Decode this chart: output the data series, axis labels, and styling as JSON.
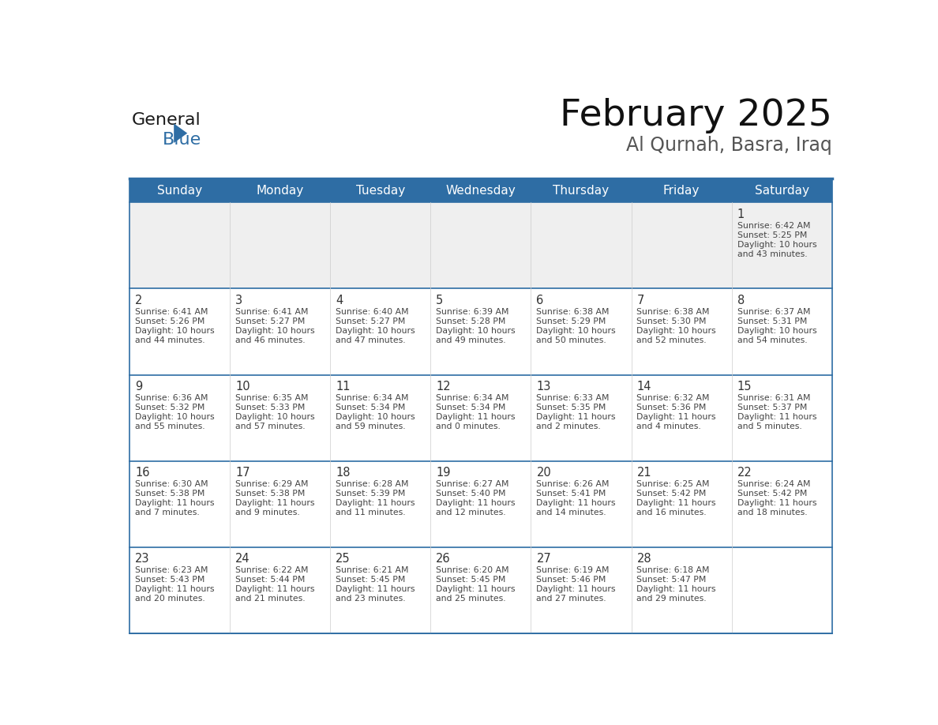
{
  "title": "February 2025",
  "subtitle": "Al Qurnah, Basra, Iraq",
  "header_bg": "#2E6DA4",
  "header_text_color": "#FFFFFF",
  "cell_bg_light": "#EFEFEF",
  "cell_bg_white": "#FFFFFF",
  "border_color": "#2E6DA4",
  "grid_line_color": "#AAAAAA",
  "day_headers": [
    "Sunday",
    "Monday",
    "Tuesday",
    "Wednesday",
    "Thursday",
    "Friday",
    "Saturday"
  ],
  "days": [
    {
      "day": 1,
      "col": 6,
      "row": 0,
      "sunrise": "6:42 AM",
      "sunset": "5:25 PM",
      "daylight_hours": 10,
      "daylight_minutes": 43
    },
    {
      "day": 2,
      "col": 0,
      "row": 1,
      "sunrise": "6:41 AM",
      "sunset": "5:26 PM",
      "daylight_hours": 10,
      "daylight_minutes": 44
    },
    {
      "day": 3,
      "col": 1,
      "row": 1,
      "sunrise": "6:41 AM",
      "sunset": "5:27 PM",
      "daylight_hours": 10,
      "daylight_minutes": 46
    },
    {
      "day": 4,
      "col": 2,
      "row": 1,
      "sunrise": "6:40 AM",
      "sunset": "5:27 PM",
      "daylight_hours": 10,
      "daylight_minutes": 47
    },
    {
      "day": 5,
      "col": 3,
      "row": 1,
      "sunrise": "6:39 AM",
      "sunset": "5:28 PM",
      "daylight_hours": 10,
      "daylight_minutes": 49
    },
    {
      "day": 6,
      "col": 4,
      "row": 1,
      "sunrise": "6:38 AM",
      "sunset": "5:29 PM",
      "daylight_hours": 10,
      "daylight_minutes": 50
    },
    {
      "day": 7,
      "col": 5,
      "row": 1,
      "sunrise": "6:38 AM",
      "sunset": "5:30 PM",
      "daylight_hours": 10,
      "daylight_minutes": 52
    },
    {
      "day": 8,
      "col": 6,
      "row": 1,
      "sunrise": "6:37 AM",
      "sunset": "5:31 PM",
      "daylight_hours": 10,
      "daylight_minutes": 54
    },
    {
      "day": 9,
      "col": 0,
      "row": 2,
      "sunrise": "6:36 AM",
      "sunset": "5:32 PM",
      "daylight_hours": 10,
      "daylight_minutes": 55
    },
    {
      "day": 10,
      "col": 1,
      "row": 2,
      "sunrise": "6:35 AM",
      "sunset": "5:33 PM",
      "daylight_hours": 10,
      "daylight_minutes": 57
    },
    {
      "day": 11,
      "col": 2,
      "row": 2,
      "sunrise": "6:34 AM",
      "sunset": "5:34 PM",
      "daylight_hours": 10,
      "daylight_minutes": 59
    },
    {
      "day": 12,
      "col": 3,
      "row": 2,
      "sunrise": "6:34 AM",
      "sunset": "5:34 PM",
      "daylight_hours": 11,
      "daylight_minutes": 0
    },
    {
      "day": 13,
      "col": 4,
      "row": 2,
      "sunrise": "6:33 AM",
      "sunset": "5:35 PM",
      "daylight_hours": 11,
      "daylight_minutes": 2
    },
    {
      "day": 14,
      "col": 5,
      "row": 2,
      "sunrise": "6:32 AM",
      "sunset": "5:36 PM",
      "daylight_hours": 11,
      "daylight_minutes": 4
    },
    {
      "day": 15,
      "col": 6,
      "row": 2,
      "sunrise": "6:31 AM",
      "sunset": "5:37 PM",
      "daylight_hours": 11,
      "daylight_minutes": 5
    },
    {
      "day": 16,
      "col": 0,
      "row": 3,
      "sunrise": "6:30 AM",
      "sunset": "5:38 PM",
      "daylight_hours": 11,
      "daylight_minutes": 7
    },
    {
      "day": 17,
      "col": 1,
      "row": 3,
      "sunrise": "6:29 AM",
      "sunset": "5:38 PM",
      "daylight_hours": 11,
      "daylight_minutes": 9
    },
    {
      "day": 18,
      "col": 2,
      "row": 3,
      "sunrise": "6:28 AM",
      "sunset": "5:39 PM",
      "daylight_hours": 11,
      "daylight_minutes": 11
    },
    {
      "day": 19,
      "col": 3,
      "row": 3,
      "sunrise": "6:27 AM",
      "sunset": "5:40 PM",
      "daylight_hours": 11,
      "daylight_minutes": 12
    },
    {
      "day": 20,
      "col": 4,
      "row": 3,
      "sunrise": "6:26 AM",
      "sunset": "5:41 PM",
      "daylight_hours": 11,
      "daylight_minutes": 14
    },
    {
      "day": 21,
      "col": 5,
      "row": 3,
      "sunrise": "6:25 AM",
      "sunset": "5:42 PM",
      "daylight_hours": 11,
      "daylight_minutes": 16
    },
    {
      "day": 22,
      "col": 6,
      "row": 3,
      "sunrise": "6:24 AM",
      "sunset": "5:42 PM",
      "daylight_hours": 11,
      "daylight_minutes": 18
    },
    {
      "day": 23,
      "col": 0,
      "row": 4,
      "sunrise": "6:23 AM",
      "sunset": "5:43 PM",
      "daylight_hours": 11,
      "daylight_minutes": 20
    },
    {
      "day": 24,
      "col": 1,
      "row": 4,
      "sunrise": "6:22 AM",
      "sunset": "5:44 PM",
      "daylight_hours": 11,
      "daylight_minutes": 21
    },
    {
      "day": 25,
      "col": 2,
      "row": 4,
      "sunrise": "6:21 AM",
      "sunset": "5:45 PM",
      "daylight_hours": 11,
      "daylight_minutes": 23
    },
    {
      "day": 26,
      "col": 3,
      "row": 4,
      "sunrise": "6:20 AM",
      "sunset": "5:45 PM",
      "daylight_hours": 11,
      "daylight_minutes": 25
    },
    {
      "day": 27,
      "col": 4,
      "row": 4,
      "sunrise": "6:19 AM",
      "sunset": "5:46 PM",
      "daylight_hours": 11,
      "daylight_minutes": 27
    },
    {
      "day": 28,
      "col": 5,
      "row": 4,
      "sunrise": "6:18 AM",
      "sunset": "5:47 PM",
      "daylight_hours": 11,
      "daylight_minutes": 29
    }
  ],
  "num_rows": 5,
  "num_cols": 7,
  "text_color_dark": "#222222",
  "day_num_color": "#333333",
  "info_text_color": "#444444",
  "logo_triangle_color": "#2E6DA4",
  "logo_blue_color": "#2E6DA4",
  "logo_general_color": "#1a1a1a"
}
